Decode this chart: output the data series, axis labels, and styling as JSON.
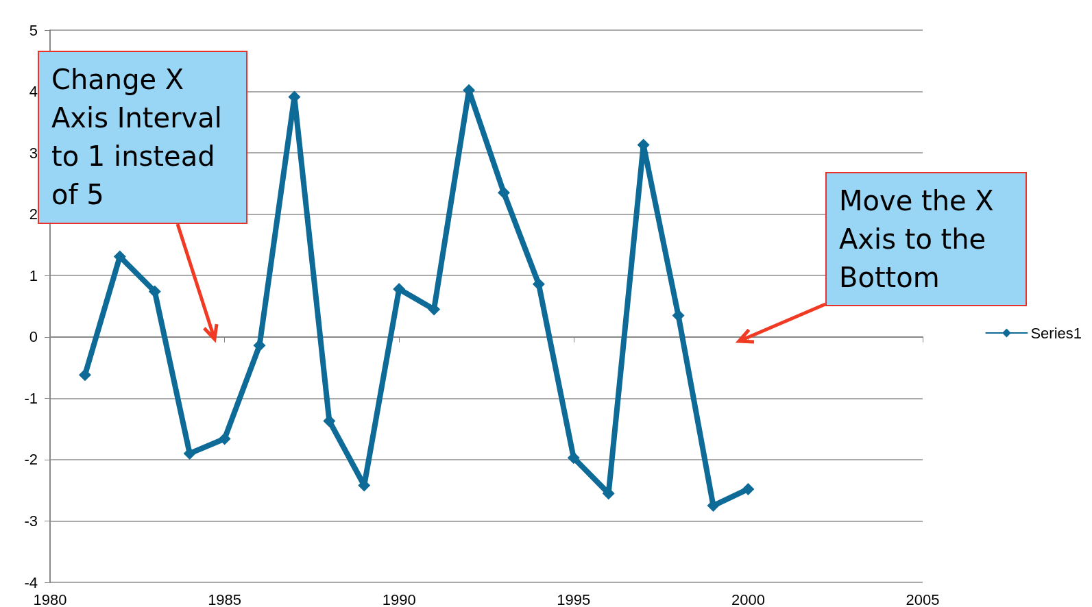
{
  "chart_data": {
    "type": "line",
    "x": [
      1981,
      1982,
      1983,
      1984,
      1985,
      1986,
      1987,
      1988,
      1989,
      1990,
      1991,
      1992,
      1993,
      1994,
      1995,
      1996,
      1997,
      1998,
      1999,
      2000
    ],
    "series": [
      {
        "name": "Series1",
        "color": "#0e6a96",
        "values": [
          -0.62,
          1.31,
          0.74,
          -1.9,
          -1.66,
          -0.14,
          3.91,
          -1.37,
          -2.42,
          0.78,
          0.45,
          4.02,
          2.35,
          0.86,
          -1.97,
          -2.55,
          3.13,
          0.35,
          -2.75,
          -2.48
        ]
      }
    ],
    "xlim": [
      1980,
      2005
    ],
    "xticks": [
      1980,
      1985,
      1990,
      1995,
      2000,
      2005
    ],
    "ylim": [
      -4,
      5
    ],
    "yticks": [
      -4,
      -3,
      -2,
      -1,
      0,
      1,
      2,
      3,
      4,
      5
    ],
    "grid": "y",
    "legend": "right",
    "marker": "diamond",
    "line_style": "solid",
    "annotations": [
      "Change X Axis Interval to 1 instead of 5",
      "Move the X Axis to the Bottom"
    ]
  }
}
